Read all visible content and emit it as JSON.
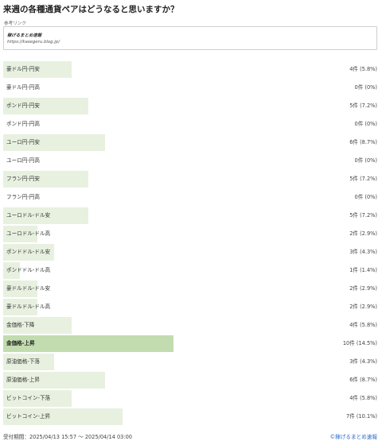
{
  "page": {
    "title": "来週の各種通貨ペアはどうなると思いますか？",
    "reference": {
      "label": "参考リンク",
      "site_name": "稼げるまとめ速報",
      "url": "https://kasegeru.blog.jp/"
    },
    "footer": {
      "period": "受付期間：2025/04/13 15:57 〜 2025/04/14 03:00",
      "credit": "©稼げるまとめ速報"
    },
    "colors": {
      "bar": "#e8f1e0",
      "bar_top": "#c2dcb0",
      "link": "#2a6bc9"
    }
  },
  "chart_data": {
    "type": "bar",
    "orientation": "horizontal",
    "categories": [
      "豪ドル円-円安",
      "豪ドル円-円高",
      "ポンド円-円安",
      "ポンド円-円高",
      "ユーロ円-円安",
      "ユーロ円-円高",
      "フラン円-円安",
      "フラン円-円高",
      "ユーロドル-ドル安",
      "ユーロドル-ドル高",
      "ポンドドル-ドル安",
      "ポンドドル-ドル高",
      "豪ドルドル-ドル安",
      "豪ドルドル-ドル高",
      "金価格-下降",
      "金価格-上昇",
      "原油価格-下落",
      "原油価格-上昇",
      "ビットコイン-下落",
      "ビットコイン-上昇"
    ],
    "values": [
      4,
      0,
      5,
      0,
      6,
      0,
      5,
      0,
      5,
      2,
      3,
      1,
      2,
      2,
      4,
      10,
      3,
      6,
      4,
      7
    ],
    "value_labels": [
      "4件 (5.8%)",
      "0件 (0%)",
      "5件 (7.2%)",
      "0件 (0%)",
      "6件 (8.7%)",
      "0件 (0%)",
      "5件 (7.2%)",
      "0件 (0%)",
      "5件 (7.2%)",
      "2件 (2.9%)",
      "3件 (4.3%)",
      "1件 (1.4%)",
      "2件 (2.9%)",
      "2件 (2.9%)",
      "4件 (5.8%)",
      "10件 (14.5%)",
      "3件 (4.3%)",
      "6件 (8.7%)",
      "4件 (5.8%)",
      "7件 (10.1%)"
    ],
    "highlight_index": 15
  }
}
